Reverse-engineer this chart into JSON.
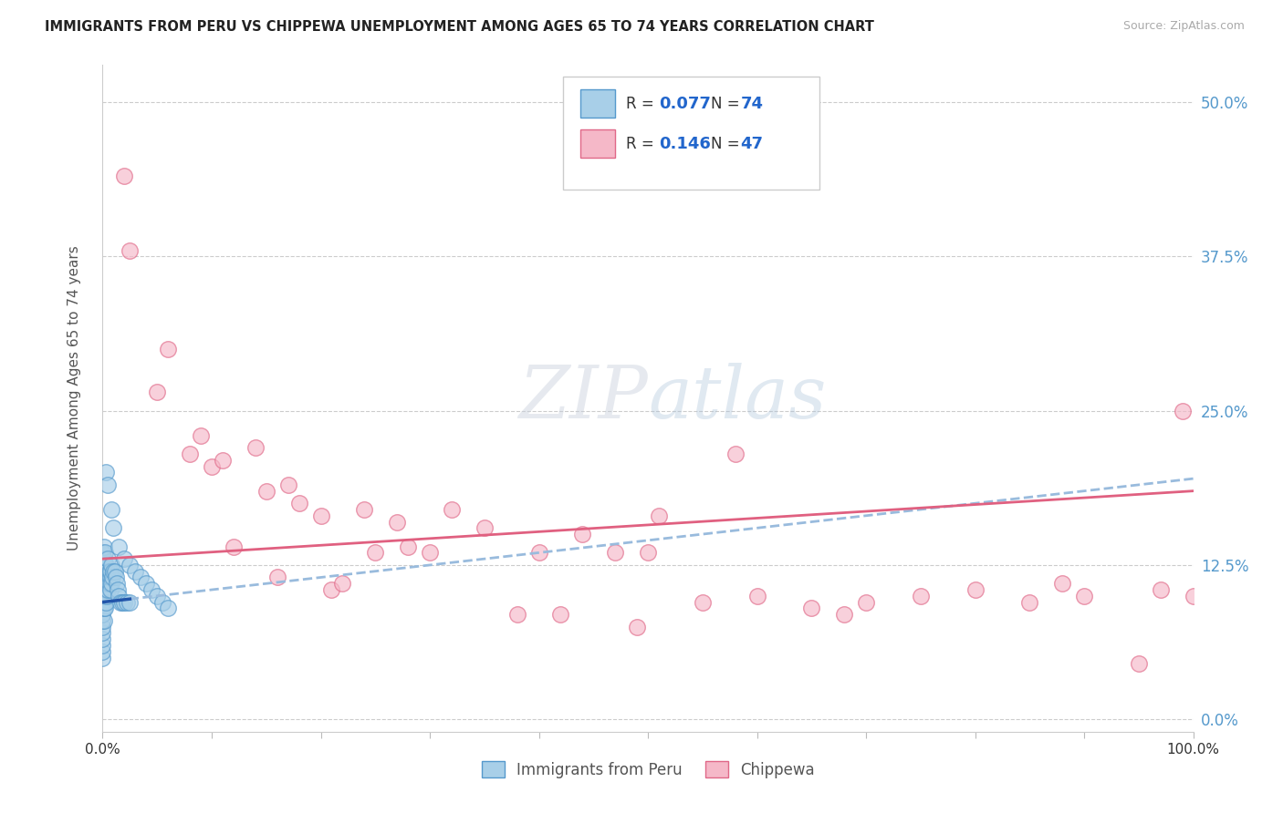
{
  "title": "IMMIGRANTS FROM PERU VS CHIPPEWA UNEMPLOYMENT AMONG AGES 65 TO 74 YEARS CORRELATION CHART",
  "source": "Source: ZipAtlas.com",
  "ylabel": "Unemployment Among Ages 65 to 74 years",
  "ytick_labels": [
    "0.0%",
    "12.5%",
    "25.0%",
    "37.5%",
    "50.0%"
  ],
  "ytick_values": [
    0,
    12.5,
    25.0,
    37.5,
    50.0
  ],
  "xlim": [
    0,
    100
  ],
  "ylim": [
    -1,
    53
  ],
  "color_blue": "#a8cfe8",
  "color_pink": "#f5b8c8",
  "color_blue_edge": "#5599cc",
  "color_pink_edge": "#e06888",
  "color_blue_trendline": "#99bbdd",
  "color_pink_trendline": "#e06080",
  "color_blue_solidline": "#2255aa",
  "peru_label": "Immigrants from Peru",
  "chippewa_label": "Chippewa",
  "peru_x": [
    0.0,
    0.0,
    0.0,
    0.0,
    0.0,
    0.0,
    0.0,
    0.0,
    0.0,
    0.0,
    0.0,
    0.0,
    0.0,
    0.0,
    0.0,
    0.0,
    0.0,
    0.0,
    0.0,
    0.0,
    0.1,
    0.1,
    0.1,
    0.1,
    0.1,
    0.1,
    0.1,
    0.2,
    0.2,
    0.2,
    0.2,
    0.2,
    0.3,
    0.3,
    0.3,
    0.3,
    0.4,
    0.4,
    0.4,
    0.5,
    0.5,
    0.5,
    0.6,
    0.6,
    0.7,
    0.7,
    0.7,
    0.8,
    0.8,
    0.9,
    1.0,
    1.1,
    1.2,
    1.3,
    1.4,
    1.5,
    1.6,
    1.8,
    2.0,
    2.2,
    2.5,
    0.3,
    0.5,
    0.8,
    1.0,
    1.5,
    2.0,
    2.5,
    3.0,
    3.5,
    4.0,
    4.5,
    5.0,
    5.5,
    6.0
  ],
  "peru_y": [
    5.0,
    5.5,
    6.0,
    6.5,
    7.0,
    7.5,
    8.0,
    8.5,
    9.0,
    9.5,
    10.0,
    10.5,
    11.0,
    11.5,
    11.8,
    12.0,
    12.2,
    12.5,
    13.0,
    13.5,
    8.0,
    9.0,
    10.0,
    11.0,
    12.0,
    13.0,
    14.0,
    9.0,
    10.0,
    11.0,
    12.5,
    13.5,
    9.5,
    10.5,
    11.5,
    12.5,
    10.0,
    11.0,
    12.0,
    10.5,
    11.5,
    13.0,
    11.0,
    12.0,
    10.5,
    11.5,
    12.0,
    11.0,
    12.5,
    11.5,
    12.0,
    12.0,
    11.5,
    11.0,
    10.5,
    10.0,
    9.5,
    9.5,
    9.5,
    9.5,
    9.5,
    20.0,
    19.0,
    17.0,
    15.5,
    14.0,
    13.0,
    12.5,
    12.0,
    11.5,
    11.0,
    10.5,
    10.0,
    9.5,
    9.0
  ],
  "chippewa_x": [
    2.0,
    2.5,
    5.0,
    6.0,
    8.0,
    9.0,
    10.0,
    11.0,
    12.0,
    14.0,
    15.0,
    16.0,
    17.0,
    18.0,
    20.0,
    21.0,
    22.0,
    24.0,
    25.0,
    27.0,
    28.0,
    30.0,
    32.0,
    35.0,
    38.0,
    40.0,
    42.0,
    44.0,
    47.0,
    49.0,
    50.0,
    51.0,
    55.0,
    58.0,
    60.0,
    65.0,
    68.0,
    70.0,
    75.0,
    80.0,
    85.0,
    88.0,
    90.0,
    95.0,
    97.0,
    99.0,
    100.0
  ],
  "chippewa_y": [
    44.0,
    38.0,
    26.5,
    30.0,
    21.5,
    23.0,
    20.5,
    21.0,
    14.0,
    22.0,
    18.5,
    11.5,
    19.0,
    17.5,
    16.5,
    10.5,
    11.0,
    17.0,
    13.5,
    16.0,
    14.0,
    13.5,
    17.0,
    15.5,
    8.5,
    13.5,
    8.5,
    15.0,
    13.5,
    7.5,
    13.5,
    16.5,
    9.5,
    21.5,
    10.0,
    9.0,
    8.5,
    9.5,
    10.0,
    10.5,
    9.5,
    11.0,
    10.0,
    4.5,
    10.5,
    25.0,
    10.0
  ]
}
